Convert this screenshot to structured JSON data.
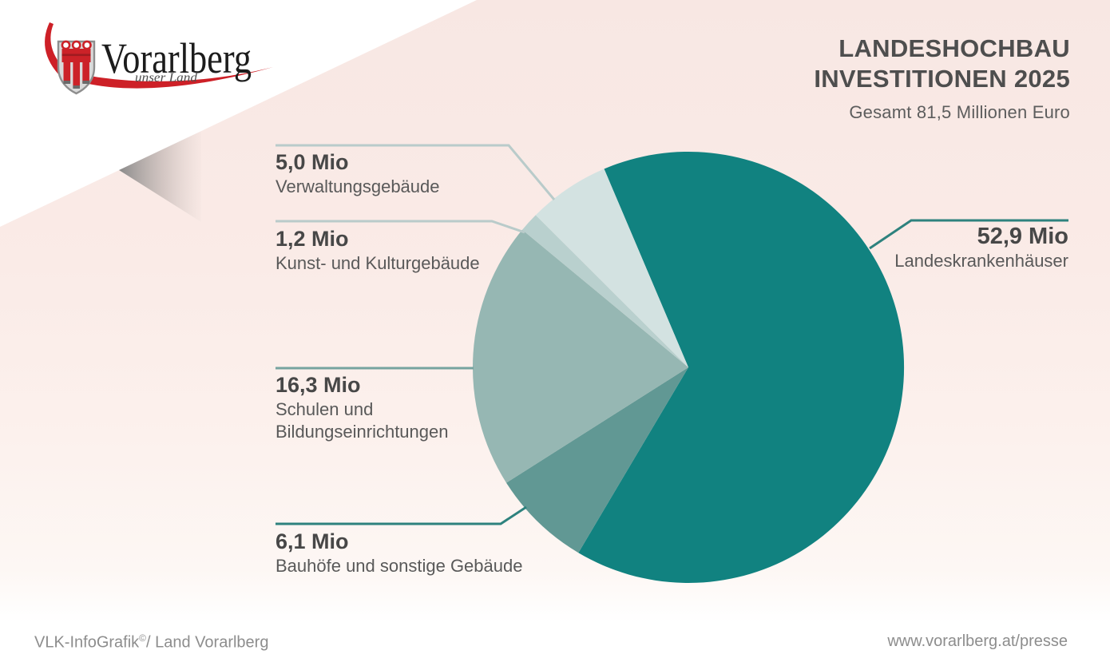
{
  "header": {
    "title_line1": "LANDESHOCHBAU",
    "title_line2": "INVESTITIONEN 2025",
    "subtitle": "Gesamt 81,5 Millionen Euro"
  },
  "logo": {
    "wordmark": "Vorarlberg",
    "tagline": "unser Land"
  },
  "chart_data": {
    "type": "pie",
    "title": "LANDESHOCHBAU INVESTITIONEN 2025",
    "subtitle": "Gesamt 81,5 Millionen Euro",
    "total": 81.5,
    "unit": "Mio Euro",
    "start_angle_deg": 337,
    "direction": "clockwise",
    "legend_position": "callout-labels",
    "slices": [
      {
        "label": "Landeskrankenhäuser",
        "value": 52.9,
        "display": "52,9 Mio",
        "color": "#118280"
      },
      {
        "label": "Bauhöfe und sonstige Gebäude",
        "value": 6.1,
        "display": "6,1 Mio",
        "color": "#619894"
      },
      {
        "label": "Schulen und Bildungseinrichtungen",
        "value": 16.3,
        "display": "16,3 Mio",
        "color": "#96b7b3"
      },
      {
        "label": "Kunst- und Kulturgebäude",
        "value": 1.2,
        "display": "1,2 Mio",
        "color": "#b9d0ce"
      },
      {
        "label": "Verwaltungsgebäude",
        "value": 5.0,
        "display": "5,0 Mio",
        "color": "#d3e2e1"
      }
    ]
  },
  "colors": {
    "background_pink": "#f9e9e5",
    "accent_teal": "#118280",
    "leader_pale": "#b9cbca",
    "leader_medium": "#76a39f",
    "leader_dark": "#2e827e"
  },
  "footer": {
    "credit_pre": "VLK-InfoGrafik",
    "credit_sup": "©",
    "credit_post": "/ Land Vorarlberg",
    "url": "www.vorarlberg.at/presse"
  }
}
